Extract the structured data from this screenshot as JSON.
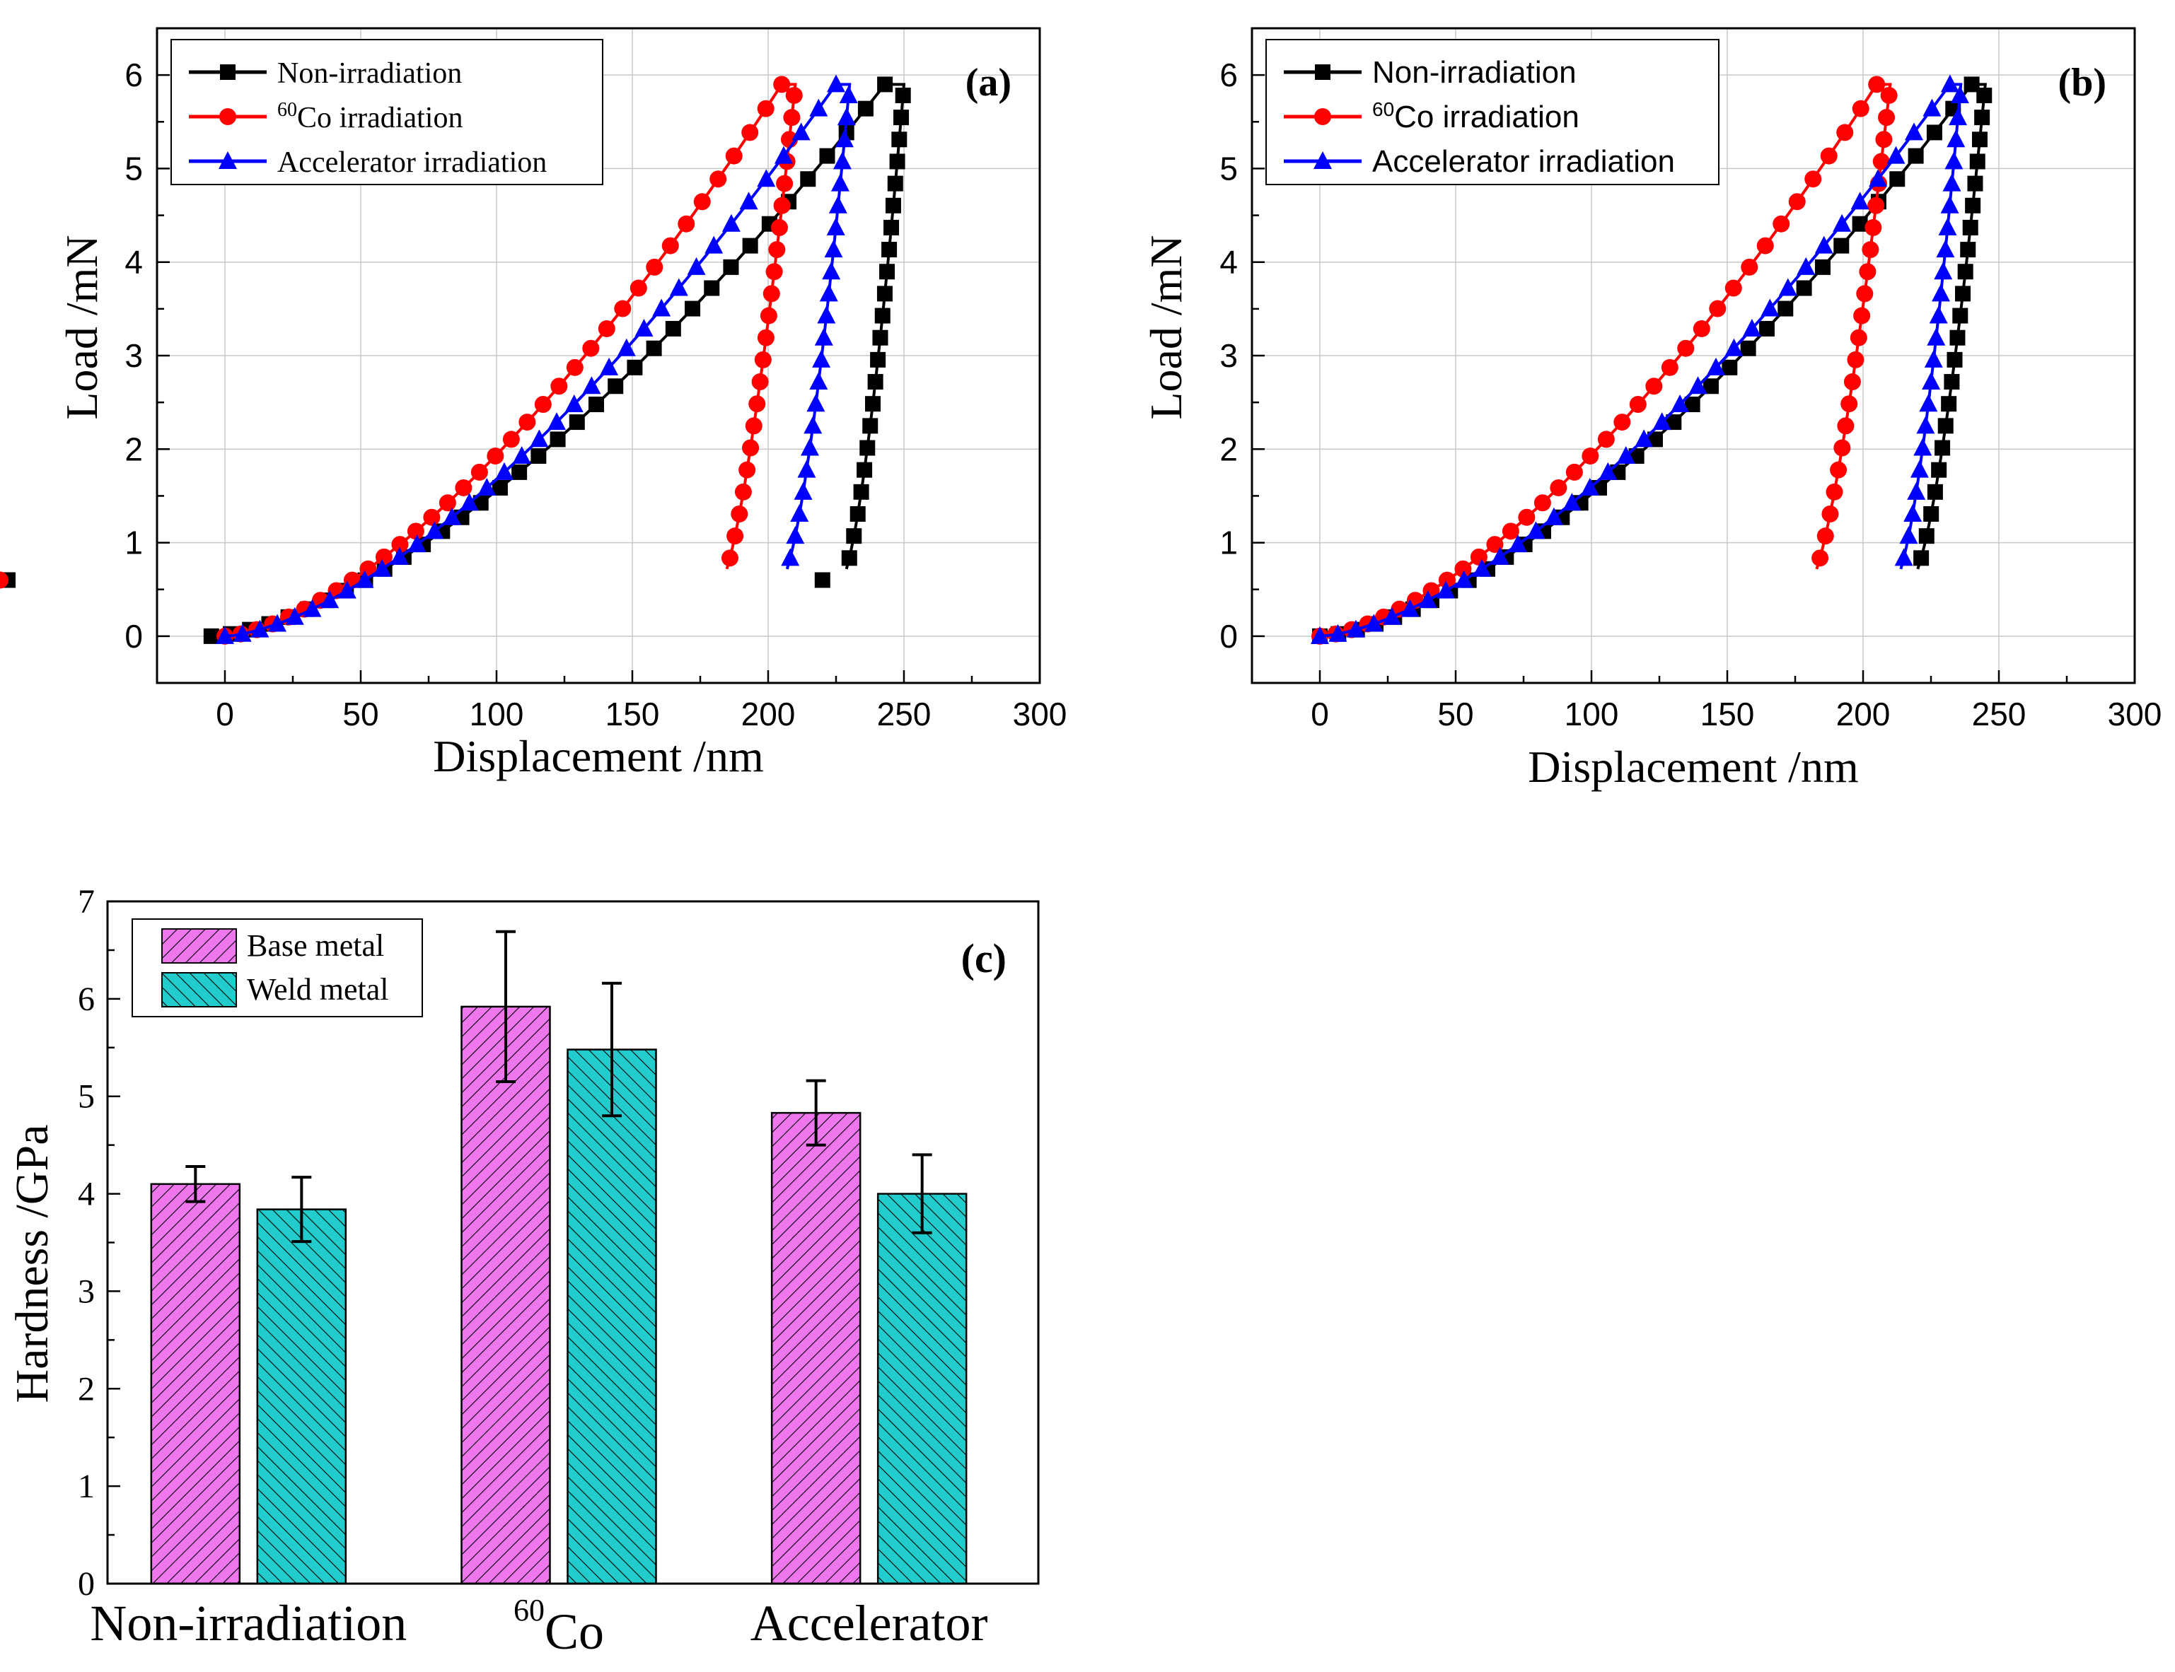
{
  "chart_data": [
    {
      "id": "a",
      "type": "line",
      "panel_label": "(a)",
      "xlabel": "Displacement /nm",
      "ylabel": "Load /mN",
      "xlim": [
        -25,
        300
      ],
      "ylim": [
        -0.5,
        6.5
      ],
      "xticks": [
        "0",
        "50",
        "100",
        "150",
        "200",
        "250",
        "300"
      ],
      "yticks": [
        "0",
        "1",
        "2",
        "3",
        "4",
        "5",
        "6"
      ],
      "grid": true,
      "legend_position": "top-left",
      "series": [
        {
          "name": "Non-irradiation",
          "name_sup": "",
          "name_main": "Non-irradiation",
          "color": "#000000",
          "marker": "square",
          "loading": {
            "start": -5,
            "d_max": 243,
            "p_max": 5.9
          },
          "hold": [
            243,
            250
          ],
          "unloading": {
            "end_d": 227,
            "end_p": 0.6,
            "exp": 1.5
          },
          "tail_to": 220
        },
        {
          "name": "60Co irradiation",
          "name_sup": "60",
          "name_main": "Co irradiation",
          "color": "#ff0000",
          "marker": "circle",
          "loading": {
            "start": 0,
            "d_max": 205,
            "p_max": 5.9
          },
          "hold": [
            205,
            210
          ],
          "unloading": {
            "end_d": 183,
            "end_p": 0.6,
            "exp": 1.4
          },
          "tail_to": null
        },
        {
          "name": "Accelerator irradiation",
          "name_sup": "",
          "name_main": "Accelerator irradiation",
          "color": "#0000ff",
          "marker": "triangle",
          "loading": {
            "start": 0,
            "d_max": 225,
            "p_max": 5.9
          },
          "hold": [
            225,
            230
          ],
          "unloading": {
            "end_d": 205,
            "end_p": 0.6,
            "exp": 1.5
          },
          "tail_to": null
        }
      ]
    },
    {
      "id": "b",
      "type": "line",
      "panel_label": "(b)",
      "xlabel": "Displacement /nm",
      "ylabel": "Load /mN",
      "xlim": [
        -25,
        300
      ],
      "ylim": [
        -0.5,
        6.5
      ],
      "xticks": [
        "0",
        "50",
        "100",
        "150",
        "200",
        "250",
        "300"
      ],
      "yticks": [
        "0",
        "1",
        "2",
        "3",
        "4",
        "5",
        "6"
      ],
      "grid": true,
      "legend_position": "top-left",
      "series": [
        {
          "name": "Non-irradiation",
          "name_sup": "",
          "name_main": "Non-irradiation",
          "color": "#000000",
          "marker": "square",
          "loading": {
            "start": 0,
            "d_max": 240,
            "p_max": 5.9
          },
          "hold": [
            240,
            245
          ],
          "unloading": {
            "end_d": 218,
            "end_p": 0.6,
            "exp": 1.5
          },
          "tail_to": null
        },
        {
          "name": "60Co irradiation",
          "name_sup": "60",
          "name_main": "Co irradiation",
          "color": "#ff0000",
          "marker": "circle",
          "loading": {
            "start": 0,
            "d_max": 205,
            "p_max": 5.9
          },
          "hold": [
            205,
            210
          ],
          "unloading": {
            "end_d": 181,
            "end_p": 0.6,
            "exp": 1.4
          },
          "tail_to": null
        },
        {
          "name": "Accelerator irradiation",
          "name_sup": "",
          "name_main": "Accelerator irradiation",
          "color": "#0000ff",
          "marker": "triangle",
          "loading": {
            "start": 0,
            "d_max": 232,
            "p_max": 5.9
          },
          "hold": [
            232,
            236
          ],
          "unloading": {
            "end_d": 212,
            "end_p": 0.6,
            "exp": 1.5
          },
          "tail_to": null
        }
      ]
    },
    {
      "id": "c",
      "type": "bar",
      "panel_label": "(c)",
      "xlabel": "",
      "ylabel": "Hardness /GPa",
      "ylim": [
        0,
        7
      ],
      "yticks": [
        "0",
        "1",
        "2",
        "3",
        "4",
        "5",
        "6",
        "7"
      ],
      "categories": [
        {
          "sup": "",
          "main": "Non-irradiation"
        },
        {
          "sup": "60",
          "main": "Co"
        },
        {
          "sup": "",
          "main": "Accelerator"
        }
      ],
      "legend_position": "top-left",
      "series": [
        {
          "name": "Base metal",
          "color": "#ee77ee",
          "hatch": "forward",
          "values": [
            4.1,
            5.92,
            4.83
          ],
          "errors": [
            0.18,
            0.77,
            0.33
          ]
        },
        {
          "name": "Weld metal",
          "color": "#22cccc",
          "hatch": "backward",
          "values": [
            3.84,
            5.48,
            4.0
          ],
          "errors": [
            0.33,
            0.68,
            0.4
          ]
        }
      ]
    }
  ]
}
